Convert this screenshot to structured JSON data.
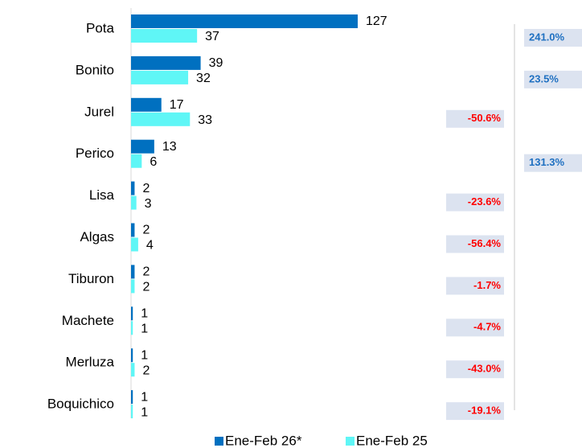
{
  "chart_data": {
    "type": "bar",
    "categories": [
      "Pota",
      "Bonito",
      "Jurel",
      "Perico",
      "Lisa",
      "Algas",
      "Tiburon",
      "Machete",
      "Merluza",
      "Boquichico"
    ],
    "series": [
      {
        "name": "Ene-Feb 26*",
        "color": "#0070c0",
        "values": [
          127,
          39,
          17,
          13,
          2,
          2,
          2,
          1,
          1,
          1
        ]
      },
      {
        "name": "Ene-Feb 25",
        "color": "#5ff6f6",
        "values": [
          37,
          32,
          33,
          6,
          3,
          4,
          2,
          1,
          2,
          1
        ]
      }
    ],
    "change": {
      "values": [
        241.0,
        23.5,
        -50.6,
        131.3,
        -23.6,
        -56.4,
        -1.7,
        -4.7,
        -43.0,
        -19.1
      ],
      "value_labels": [
        "241.0%",
        "23.5%",
        "-50.6%",
        "131.3%",
        "-23.6%",
        "-56.4%",
        "-1.7%",
        "-4.7%",
        "-43.0%",
        "-19.1%"
      ],
      "positive_color": "#1f70c1",
      "negative_color": "#ff0000",
      "box_color": "#dce3f0"
    }
  }
}
